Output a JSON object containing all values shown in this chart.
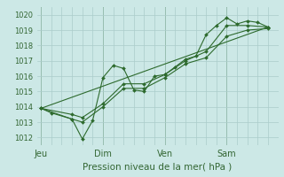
{
  "background_color": "#cce8e6",
  "grid_color": "#aaccca",
  "line_color": "#2d6a2d",
  "marker_color": "#2d6a2d",
  "text_color": "#336633",
  "xlabel": "Pression niveau de la mer( hPa )",
  "ylim": [
    1011.5,
    1020.5
  ],
  "yticks": [
    1012,
    1013,
    1014,
    1015,
    1016,
    1017,
    1018,
    1019,
    1020
  ],
  "day_labels": [
    "Jeu",
    "Dim",
    "Ven",
    "Sam"
  ],
  "day_positions": [
    0.0,
    3.0,
    6.0,
    9.0
  ],
  "xlim": [
    -0.2,
    11.5
  ],
  "series": [
    {
      "x": [
        0.0,
        0.5,
        1.5,
        2.0,
        2.5,
        3.0,
        3.5,
        4.0,
        4.5,
        5.0,
        5.5,
        6.0,
        6.5,
        7.0,
        7.5,
        8.0,
        8.5,
        9.0,
        9.5,
        10.0,
        10.5,
        11.0
      ],
      "y": [
        1013.9,
        1013.6,
        1013.2,
        1011.9,
        1013.1,
        1015.9,
        1016.7,
        1016.5,
        1015.1,
        1015.0,
        1016.0,
        1016.1,
        1016.6,
        1017.1,
        1017.3,
        1018.7,
        1019.3,
        1019.8,
        1019.4,
        1019.6,
        1019.5,
        1019.2
      ],
      "marker": "D",
      "markersize": 2.0,
      "linewidth": 0.8
    },
    {
      "x": [
        0.0,
        1.5,
        2.0,
        3.0,
        4.0,
        5.0,
        6.0,
        7.0,
        8.0,
        9.0,
        10.0,
        11.0
      ],
      "y": [
        1013.9,
        1013.5,
        1013.3,
        1014.2,
        1015.5,
        1015.5,
        1016.1,
        1017.0,
        1017.6,
        1019.3,
        1019.3,
        1019.2
      ],
      "marker": "D",
      "markersize": 2.0,
      "linewidth": 0.8
    },
    {
      "x": [
        0.0,
        1.5,
        2.0,
        3.0,
        4.0,
        5.0,
        6.0,
        7.0,
        8.0,
        9.0,
        10.0,
        11.0
      ],
      "y": [
        1013.9,
        1013.2,
        1013.0,
        1014.0,
        1015.2,
        1015.2,
        1015.9,
        1016.8,
        1017.2,
        1018.6,
        1019.0,
        1019.1
      ],
      "marker": "D",
      "markersize": 2.0,
      "linewidth": 0.8
    },
    {
      "x": [
        0.0,
        11.0
      ],
      "y": [
        1013.9,
        1019.2
      ],
      "marker": "",
      "markersize": 0,
      "linewidth": 0.8
    }
  ]
}
